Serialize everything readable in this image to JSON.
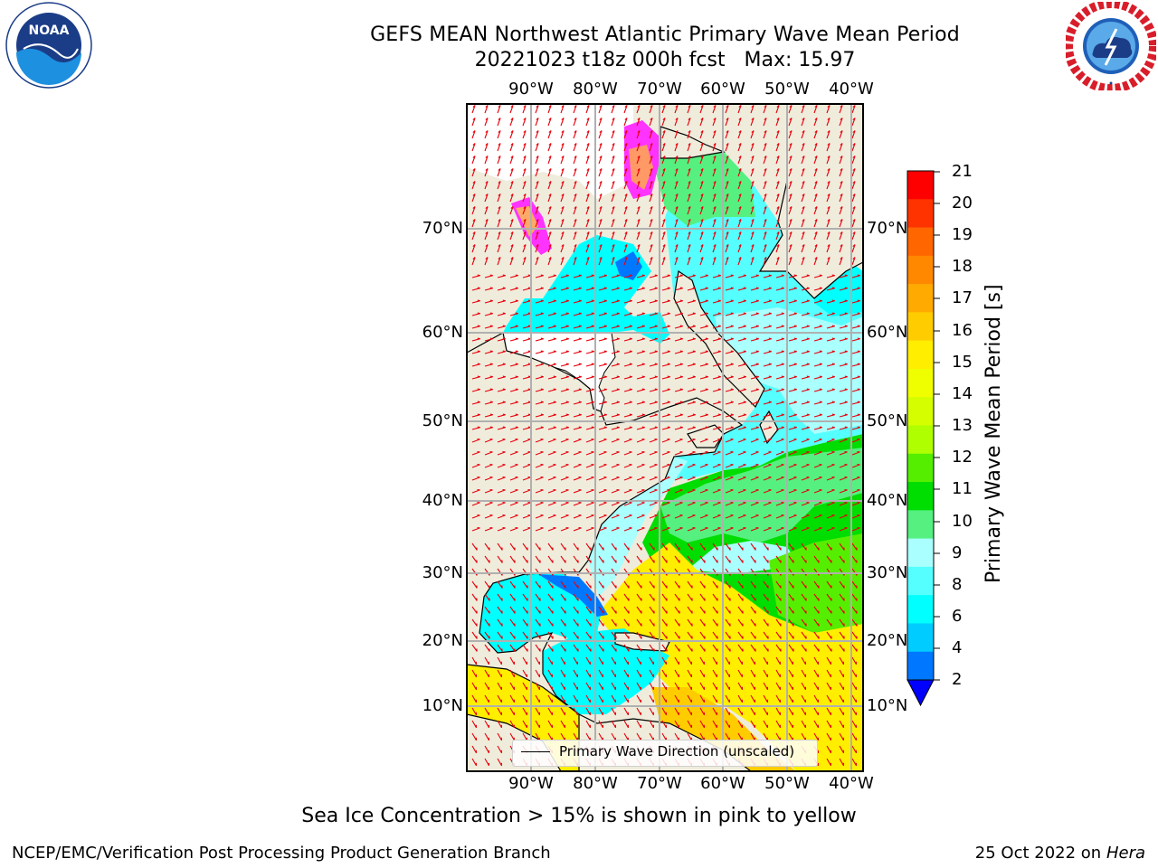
{
  "title": {
    "line1": "GEFS MEAN Northwest Atlantic Primary Wave Mean Period",
    "line2": "20221023 t18z 000h fcst   Max: 15.97"
  },
  "logos": {
    "left": {
      "icon": "noaa-logo",
      "text": "NOAA",
      "ring_text": "NATIONAL OCEANIC AND ATMOSPHERIC ADMINISTRATION · U.S. DEPARTMENT OF COMMERCE"
    },
    "right": {
      "icon": "nws-logo",
      "ring_text": "NATIONAL WEATHER SERVICE"
    }
  },
  "map": {
    "lon_ticks_top": [
      "90°W",
      "80°W",
      "70°W",
      "60°W",
      "50°W",
      "40°W"
    ],
    "lon_ticks_bottom": [
      "90°W",
      "80°W",
      "70°W",
      "60°W",
      "50°W",
      "40°W"
    ],
    "lat_ticks_left": [
      "70°N",
      "60°N",
      "50°N",
      "40°N",
      "30°N",
      "20°N",
      "10°N"
    ],
    "lat_ticks_right": [
      "70°N",
      "60°N",
      "50°N",
      "40°N",
      "30°N",
      "20°N",
      "10°N"
    ],
    "land_color": "#efecdc",
    "gridline_color": "#b0b0b0",
    "arrow_color": "#e8000b",
    "legend": "Primary Wave Direction (unscaled)"
  },
  "colorbar": {
    "title": "Primary Wave Mean Period [s]",
    "labels": [
      "21",
      "20",
      "19",
      "18",
      "17",
      "16",
      "15",
      "14",
      "13",
      "12",
      "11",
      "10",
      "9",
      "8",
      "6",
      "4",
      "2"
    ],
    "colors_top_to_bottom": [
      "#ff0000",
      "#ff3300",
      "#ff6600",
      "#ff8800",
      "#ffaa00",
      "#ffcc00",
      "#ffee00",
      "#f0ff00",
      "#d5ff00",
      "#b0ff00",
      "#55ee00",
      "#00dd00",
      "#55f080",
      "#aaffff",
      "#55ffff",
      "#00ffff",
      "#00ccff",
      "#0077ff"
    ],
    "extend_color": "#0000ff"
  },
  "sea_ice_note": "Sea Ice Concentration > 15% is shown in pink to yellow",
  "footer": {
    "credit": "NCEP/EMC/Verification Post Processing Product Generation Branch",
    "date": "25 Oct 2022 on ",
    "machine": "Hera"
  }
}
